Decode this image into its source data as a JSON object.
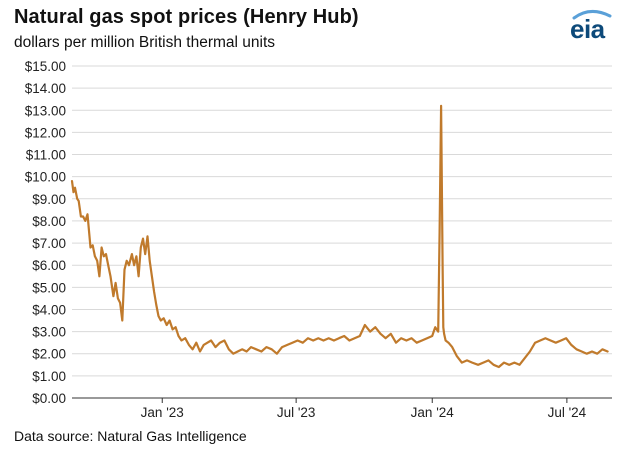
{
  "title": "Natural gas spot prices (Henry Hub)",
  "subtitle": "dollars per million British thermal units",
  "source": "Data source: Natural Gas Intelligence",
  "logo_text": "eia",
  "colors": {
    "line": "#c07a2c",
    "grid": "#d9d9d9",
    "axis": "#333333",
    "logo": "#0d4a7a",
    "logo_arc": "#5aa0d8"
  },
  "chart_data": {
    "type": "line",
    "title": "Natural gas spot prices (Henry Hub)",
    "ylabel": "dollars per million British thermal units",
    "xlabel": "",
    "ylim": [
      0,
      15
    ],
    "xlim": [
      "2022-09-01",
      "2024-08-31"
    ],
    "y_ticks": [
      "$0.00",
      "$1.00",
      "$2.00",
      "$3.00",
      "$4.00",
      "$5.00",
      "$6.00",
      "$7.00",
      "$8.00",
      "$9.00",
      "$10.00",
      "$11.00",
      "$12.00",
      "$13.00",
      "$14.00",
      "$15.00"
    ],
    "y_tick_values": [
      0,
      1,
      2,
      3,
      4,
      5,
      6,
      7,
      8,
      9,
      10,
      11,
      12,
      13,
      14,
      15
    ],
    "x_ticks": [
      {
        "label": "Jan '23",
        "date": "2023-01-01"
      },
      {
        "label": "Jul '23",
        "date": "2023-07-01"
      },
      {
        "label": "Jan '24",
        "date": "2024-01-01"
      },
      {
        "label": "Jul '24",
        "date": "2024-07-01"
      }
    ],
    "grid": "horizontal",
    "series": [
      {
        "x": [
          "2022-09-01",
          "2022-09-03",
          "2022-09-05",
          "2022-09-08",
          "2022-09-10",
          "2022-09-13",
          "2022-09-16",
          "2022-09-19",
          "2022-09-22",
          "2022-09-26",
          "2022-09-29",
          "2022-10-02",
          "2022-10-05",
          "2022-10-08",
          "2022-10-11",
          "2022-10-14",
          "2022-10-17",
          "2022-10-20",
          "2022-10-23",
          "2022-10-27",
          "2022-10-30",
          "2022-11-02",
          "2022-11-05",
          "2022-11-08",
          "2022-11-11",
          "2022-11-14",
          "2022-11-17",
          "2022-11-21",
          "2022-11-24",
          "2022-11-27",
          "2022-11-30",
          "2022-12-03",
          "2022-12-06",
          "2022-12-09",
          "2022-12-12",
          "2022-12-15",
          "2022-12-18",
          "2022-12-21",
          "2022-12-24",
          "2022-12-27",
          "2022-12-30",
          "2023-01-03",
          "2023-01-07",
          "2023-01-11",
          "2023-01-15",
          "2023-01-19",
          "2023-01-23",
          "2023-01-27",
          "2023-02-01",
          "2023-02-06",
          "2023-02-11",
          "2023-02-16",
          "2023-02-21",
          "2023-02-26",
          "2023-03-03",
          "2023-03-08",
          "2023-03-14",
          "2023-03-20",
          "2023-03-26",
          "2023-04-01",
          "2023-04-07",
          "2023-04-13",
          "2023-04-19",
          "2023-04-25",
          "2023-05-01",
          "2023-05-08",
          "2023-05-15",
          "2023-05-22",
          "2023-05-29",
          "2023-06-05",
          "2023-06-12",
          "2023-06-19",
          "2023-06-26",
          "2023-07-03",
          "2023-07-10",
          "2023-07-17",
          "2023-07-24",
          "2023-07-31",
          "2023-08-07",
          "2023-08-14",
          "2023-08-21",
          "2023-08-28",
          "2023-09-04",
          "2023-09-11",
          "2023-09-18",
          "2023-09-25",
          "2023-10-02",
          "2023-10-09",
          "2023-10-16",
          "2023-10-23",
          "2023-10-30",
          "2023-11-06",
          "2023-11-13",
          "2023-11-20",
          "2023-11-27",
          "2023-12-04",
          "2023-12-11",
          "2023-12-18",
          "2023-12-25",
          "2024-01-01",
          "2024-01-05",
          "2024-01-09",
          "2024-01-11",
          "2024-01-13",
          "2024-01-15",
          "2024-01-16",
          "2024-01-17",
          "2024-01-19",
          "2024-01-23",
          "2024-01-28",
          "2024-02-03",
          "2024-02-10",
          "2024-02-17",
          "2024-02-24",
          "2024-03-03",
          "2024-03-10",
          "2024-03-17",
          "2024-03-24",
          "2024-03-31",
          "2024-04-07",
          "2024-04-14",
          "2024-04-21",
          "2024-04-28",
          "2024-05-05",
          "2024-05-12",
          "2024-05-19",
          "2024-05-26",
          "2024-06-02",
          "2024-06-09",
          "2024-06-16",
          "2024-06-23",
          "2024-06-30",
          "2024-07-07",
          "2024-07-14",
          "2024-07-21",
          "2024-07-28",
          "2024-08-04",
          "2024-08-11",
          "2024-08-18",
          "2024-08-25"
        ],
        "values": [
          9.8,
          9.3,
          9.5,
          9.0,
          8.9,
          8.2,
          8.2,
          8.0,
          8.3,
          6.8,
          6.9,
          6.4,
          6.2,
          5.5,
          6.8,
          6.4,
          6.5,
          6.0,
          5.5,
          4.6,
          5.2,
          4.5,
          4.3,
          3.5,
          5.8,
          6.2,
          6.0,
          6.5,
          6.0,
          6.4,
          5.5,
          6.8,
          7.2,
          6.5,
          7.3,
          6.2,
          5.5,
          4.8,
          4.2,
          3.7,
          3.5,
          3.6,
          3.3,
          3.5,
          3.1,
          3.2,
          2.8,
          2.6,
          2.7,
          2.4,
          2.2,
          2.5,
          2.1,
          2.4,
          2.5,
          2.6,
          2.3,
          2.5,
          2.6,
          2.2,
          2.0,
          2.1,
          2.2,
          2.1,
          2.3,
          2.2,
          2.1,
          2.3,
          2.2,
          2.0,
          2.3,
          2.4,
          2.5,
          2.6,
          2.5,
          2.7,
          2.6,
          2.7,
          2.6,
          2.7,
          2.6,
          2.7,
          2.8,
          2.6,
          2.7,
          2.8,
          3.3,
          3.0,
          3.2,
          2.9,
          2.7,
          2.9,
          2.5,
          2.7,
          2.6,
          2.7,
          2.5,
          2.6,
          2.7,
          2.8,
          3.2,
          3.0,
          7.5,
          13.2,
          6.0,
          3.2,
          2.9,
          2.6,
          2.5,
          2.3,
          1.9,
          1.6,
          1.7,
          1.6,
          1.5,
          1.6,
          1.7,
          1.5,
          1.4,
          1.6,
          1.5,
          1.6,
          1.5,
          1.8,
          2.1,
          2.5,
          2.6,
          2.7,
          2.6,
          2.5,
          2.6,
          2.7,
          2.4,
          2.2,
          2.1,
          2.0,
          2.1,
          2.0,
          2.2,
          2.1
        ]
      }
    ]
  }
}
